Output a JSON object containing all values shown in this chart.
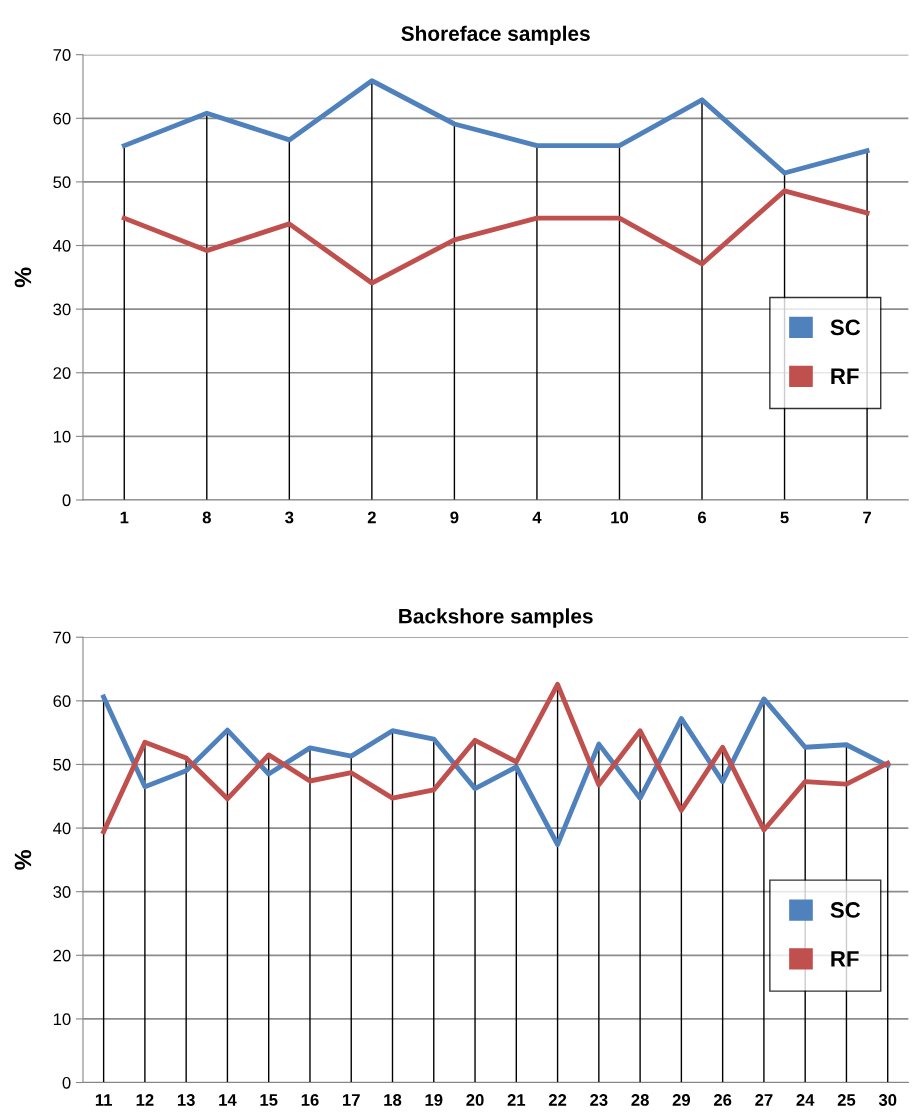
{
  "chart_data": [
    {
      "type": "line",
      "title": "Shoreface samples",
      "ylabel": "%",
      "categories": [
        "1",
        "8",
        "3",
        "2",
        "9",
        "4",
        "10",
        "6",
        "5",
        "7"
      ],
      "series": [
        {
          "name": "SC",
          "color": "#4f81bd",
          "values": [
            55.7,
            60.8,
            56.6,
            65.9,
            59.1,
            55.7,
            55.7,
            62.9,
            51.4,
            54.9
          ]
        },
        {
          "name": "RF",
          "color": "#c0504d",
          "values": [
            44.3,
            39.2,
            43.4,
            34.1,
            40.9,
            44.3,
            44.3,
            37.1,
            48.6,
            45.1
          ]
        }
      ],
      "ylim": [
        0,
        70
      ],
      "yticks": [
        0,
        10,
        20,
        30,
        40,
        50,
        60,
        70
      ],
      "grid": true,
      "legend": "right",
      "marker": "none",
      "line_style": "solid"
    },
    {
      "type": "line",
      "title": "Backshore samples",
      "ylabel": "%",
      "categories": [
        "11",
        "12",
        "13",
        "14",
        "15",
        "16",
        "17",
        "18",
        "19",
        "20",
        "21",
        "22",
        "23",
        "28",
        "29",
        "26",
        "27",
        "24",
        "25",
        "30"
      ],
      "series": [
        {
          "name": "SC",
          "color": "#4f81bd",
          "values": [
            60.6,
            46.5,
            49.0,
            55.4,
            48.5,
            52.6,
            51.3,
            55.3,
            54.0,
            46.2,
            49.6,
            37.4,
            53.2,
            44.7,
            57.2,
            47.3,
            60.3,
            52.7,
            53.1,
            49.8
          ]
        },
        {
          "name": "RF",
          "color": "#c0504d",
          "values": [
            39.4,
            53.5,
            51.0,
            44.6,
            51.5,
            47.4,
            48.7,
            44.7,
            46.0,
            53.8,
            50.4,
            62.6,
            46.8,
            55.3,
            42.8,
            52.7,
            39.7,
            47.3,
            46.9,
            50.2
          ]
        }
      ],
      "ylim": [
        0,
        70
      ],
      "yticks": [
        0,
        10,
        20,
        30,
        40,
        50,
        60,
        70
      ],
      "grid": true,
      "legend": "right",
      "marker": "none",
      "line_style": "solid"
    }
  ]
}
